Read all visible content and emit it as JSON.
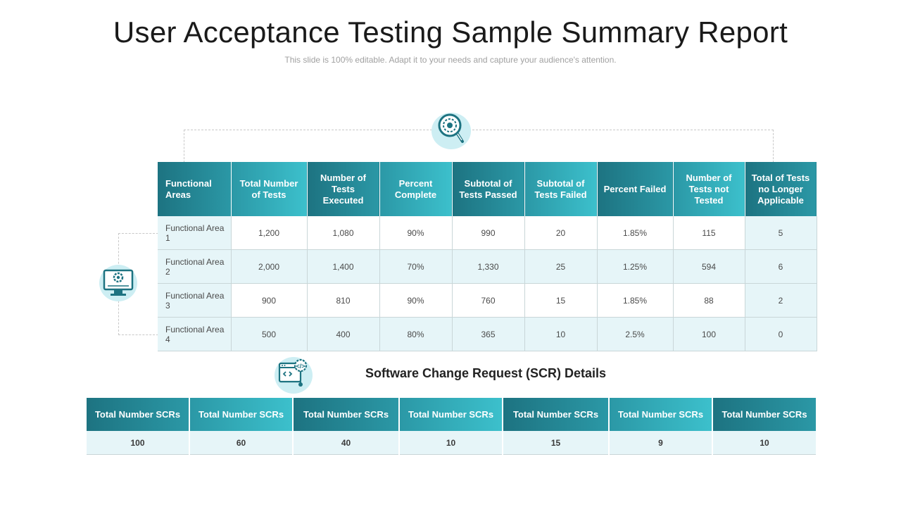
{
  "slide": {
    "title": "User Acceptance Testing Sample Summary Report",
    "subtitle": "This slide is 100% editable. Adapt it to your needs and capture your audience's attention."
  },
  "colors": {
    "teal_dark": "#1d7381",
    "teal_light": "#3cc0cc",
    "row_shade": "#e6f5f8",
    "icon_bg": "#cdeef3"
  },
  "icons": {
    "top": "magnifier-gear-icon",
    "left": "monitor-gear-icon",
    "scr": "code-window-gear-icon"
  },
  "summary_table": {
    "headers": [
      "Functional Areas",
      "Total Number of Tests",
      "Number of Tests Executed",
      "Percent Complete",
      "Subtotal of Tests Passed",
      "Subtotal of Tests Failed",
      "Percent Failed",
      "Number of Tests not Tested",
      "Total of Tests no Longer Applicable"
    ],
    "rows": [
      [
        "Functional Area 1",
        "1,200",
        "1,080",
        "90%",
        "990",
        "20",
        "1.85%",
        "115",
        "5"
      ],
      [
        "Functional Area 2",
        "2,000",
        "1,400",
        "70%",
        "1,330",
        "25",
        "1.25%",
        "594",
        "6"
      ],
      [
        "Functional Area 3",
        "900",
        "810",
        "90%",
        "760",
        "15",
        "1.85%",
        "88",
        "2"
      ],
      [
        "Functional Area 4",
        "500",
        "400",
        "80%",
        "365",
        "10",
        "2.5%",
        "100",
        "0"
      ]
    ]
  },
  "scr_section": {
    "title": "Software Change Request (SCR) Details",
    "headers": [
      "Total Number SCRs",
      "Total Number SCRs",
      "Total Number SCRs",
      "Total Number SCRs",
      "Total Number SCRs",
      "Total Number SCRs",
      "Total Number SCRs"
    ],
    "values": [
      "100",
      "60",
      "40",
      "10",
      "15",
      "9",
      "10"
    ]
  }
}
